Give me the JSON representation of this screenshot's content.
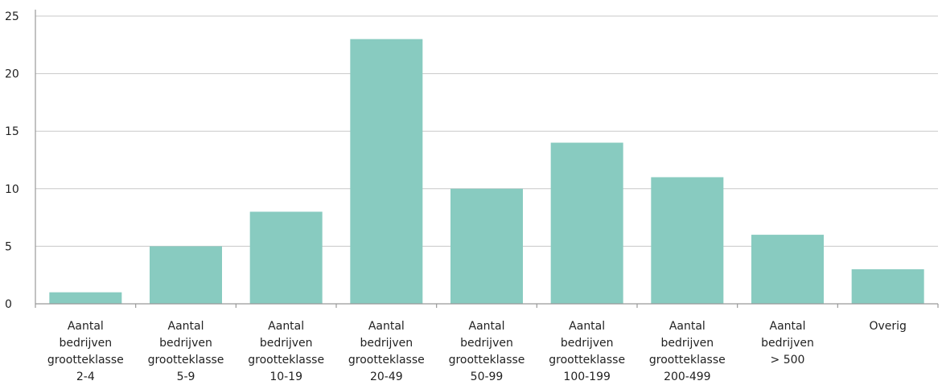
{
  "chart_data": {
    "type": "bar",
    "title": "",
    "xlabel": "",
    "ylabel": "",
    "categories": [
      "Aantal bedrijven grootteklasse 2-4",
      "Aantal bedrijven grootteklasse 5-9",
      "Aantal bedrijven grootteklasse 10-19",
      "Aantal bedrijven grootteklasse 20-49",
      "Aantal bedrijven grootteklasse 50-99",
      "Aantal bedrijven grootteklasse 100-199",
      "Aantal bedrijven grootteklasse 200-499",
      "Aantal bedrijven > 500",
      "Overig"
    ],
    "category_lines": [
      [
        "Aantal",
        "bedrijven",
        "grootteklasse",
        "2-4"
      ],
      [
        "Aantal",
        "bedrijven",
        "grootteklasse",
        "5-9"
      ],
      [
        "Aantal",
        "bedrijven",
        "grootteklasse",
        "10-19"
      ],
      [
        "Aantal",
        "bedrijven",
        "grootteklasse",
        "20-49"
      ],
      [
        "Aantal",
        "bedrijven",
        "grootteklasse",
        "50-99"
      ],
      [
        "Aantal",
        "bedrijven",
        "grootteklasse",
        "100-199"
      ],
      [
        "Aantal",
        "bedrijven",
        "grootteklasse",
        "200-499"
      ],
      [
        "Aantal",
        "bedrijven",
        "> 500"
      ],
      [
        "Overig"
      ]
    ],
    "values": [
      1,
      5,
      8,
      23,
      10,
      14,
      11,
      6,
      3
    ],
    "ylim": [
      0,
      25
    ],
    "yticks": [
      0,
      5,
      10,
      15,
      20,
      25
    ],
    "grid": true,
    "bar_color": "#88cbc0",
    "legend": "none"
  }
}
